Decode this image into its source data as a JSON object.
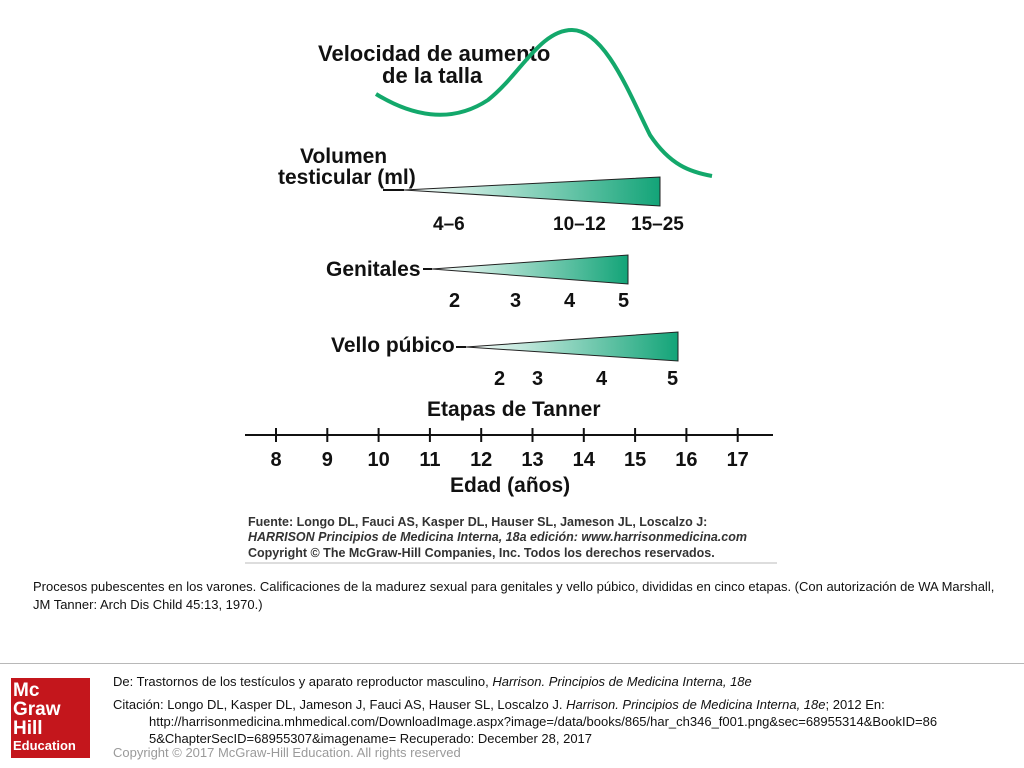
{
  "figure": {
    "growth_label": [
      "Velocidad de aumento",
      "de la talla"
    ],
    "testicular_label": [
      "Volumen",
      "testicular (ml)"
    ],
    "testicular_values": [
      "4–6",
      "10–12",
      "15–25"
    ],
    "genitales_label": "Genitales",
    "genitales_stages": [
      "2",
      "3",
      "4",
      "5"
    ],
    "vello_label": "Vello púbico",
    "vello_stages": [
      "2",
      "3",
      "4",
      "5"
    ],
    "tanner_label": "Etapas de Tanner",
    "age_ticks": [
      "8",
      "9",
      "10",
      "11",
      "12",
      "13",
      "14",
      "15",
      "16",
      "17"
    ],
    "age_label": "Edad (años)",
    "source_lines": [
      "Fuente: Longo DL, Fauci AS, Kasper DL, Hauser SL, Jameson JL, Loscalzo J:",
      "HARRISON Principios de Medicina Interna, 18a edición: www.harrisonmedicina.com",
      "Copyright © The McGraw-Hill Companies, Inc. Todos los derechos reservados."
    ],
    "colors": {
      "curve": "#13a86b",
      "wedge_dark": "#13a478",
      "wedge_light": "#ffffff"
    }
  },
  "caption": "Procesos pubescentes en los varones. Calificaciones de la madurez sexual para genitales y vello púbico, divididas en cinco etapas. (Con autorización de WA Marshall, JM Tanner: Arch Dis Child 45:13, 1970.)",
  "logo": {
    "line1": "Mc",
    "line2": "Graw",
    "line3": "Hill",
    "line4": "Education"
  },
  "reference": {
    "de_prefix": "De: ",
    "de_text": "Trastornos de los testículos y aparato reproductor masculino, ",
    "de_book": "Harrison. Principios de Medicina Interna, 18e",
    "cita_prefix": "Citación: ",
    "cita_authors": "Longo DL, Kasper DL, Jameson J, Fauci AS, Hauser SL, Loscalzo J. ",
    "cita_book": "Harrison. Principios de Medicina Interna, 18e",
    "cita_rest": "; 2012 En:",
    "url1": "http://harrisonmedicina.mhmedical.com/DownloadImage.aspx?image=/data/books/865/har_ch346_f001.png&sec=68955314&BookID=86",
    "url2": "5&ChapterSecID=68955307&imagename= Recuperado: December 28, 2017"
  },
  "copyright": "Copyright © 2017 McGraw-Hill Education. All rights reserved"
}
